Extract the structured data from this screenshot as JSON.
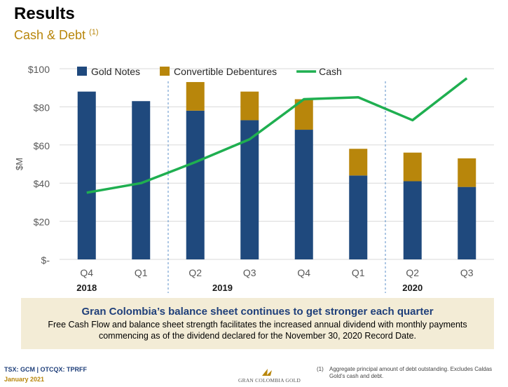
{
  "header": {
    "title": "Results",
    "subtitle": "Cash & Debt",
    "subtitle_ref": "(1)"
  },
  "chart_data": {
    "type": "bar",
    "stacked": true,
    "categories": [
      "Q4",
      "Q1",
      "Q2",
      "Q3",
      "Q4",
      "Q1",
      "Q2",
      "Q3"
    ],
    "year_labels": [
      {
        "label": "2018",
        "category_index": 0
      },
      {
        "label": "2019",
        "category_index": 2.5
      },
      {
        "label": "2020",
        "category_index": 6
      }
    ],
    "year_dividers_after": [
      1,
      5
    ],
    "series": [
      {
        "name": "Gold Notes",
        "kind": "bar",
        "color": "#1F497D",
        "values": [
          88,
          83,
          78,
          73,
          68,
          44,
          41,
          38
        ]
      },
      {
        "name": "Convertible Debentures",
        "kind": "bar",
        "color": "#B8860B",
        "values": [
          0,
          0,
          15,
          15,
          16,
          14,
          15,
          15
        ]
      },
      {
        "name": "Cash",
        "kind": "line",
        "color": "#1FAF50",
        "values": [
          35,
          40,
          51,
          63,
          84,
          85,
          73,
          95
        ]
      }
    ],
    "ylabel": "$M",
    "ylim": [
      0,
      100
    ],
    "yticks": [
      0,
      20,
      40,
      60,
      80,
      100
    ],
    "ytick_labels": [
      "$-",
      "$20",
      "$40",
      "$60",
      "$80",
      "$100"
    ],
    "grid": true,
    "legend": "top"
  },
  "banner": {
    "title": "Gran Colombia’s balance sheet continues to get stronger each quarter",
    "body": "Free Cash Flow and balance sheet strength facilitates the increased annual dividend with monthly payments commencing as of the dividend declared for the November 30, 2020 Record Date."
  },
  "footer": {
    "ticker": "TSX: GCM  |  OTCQX: TPRFF",
    "date": "January 2021",
    "logo_text": "GRAN COLOMBIA GOLD",
    "footnote_num": "(1)",
    "footnote": "Aggregate principal amount of debt outstanding. Excludes Caldas Gold’s cash and debt."
  },
  "colors": {
    "accent_gold": "#B8860B",
    "navy": "#1F497D",
    "cash_green": "#1FAF50"
  }
}
